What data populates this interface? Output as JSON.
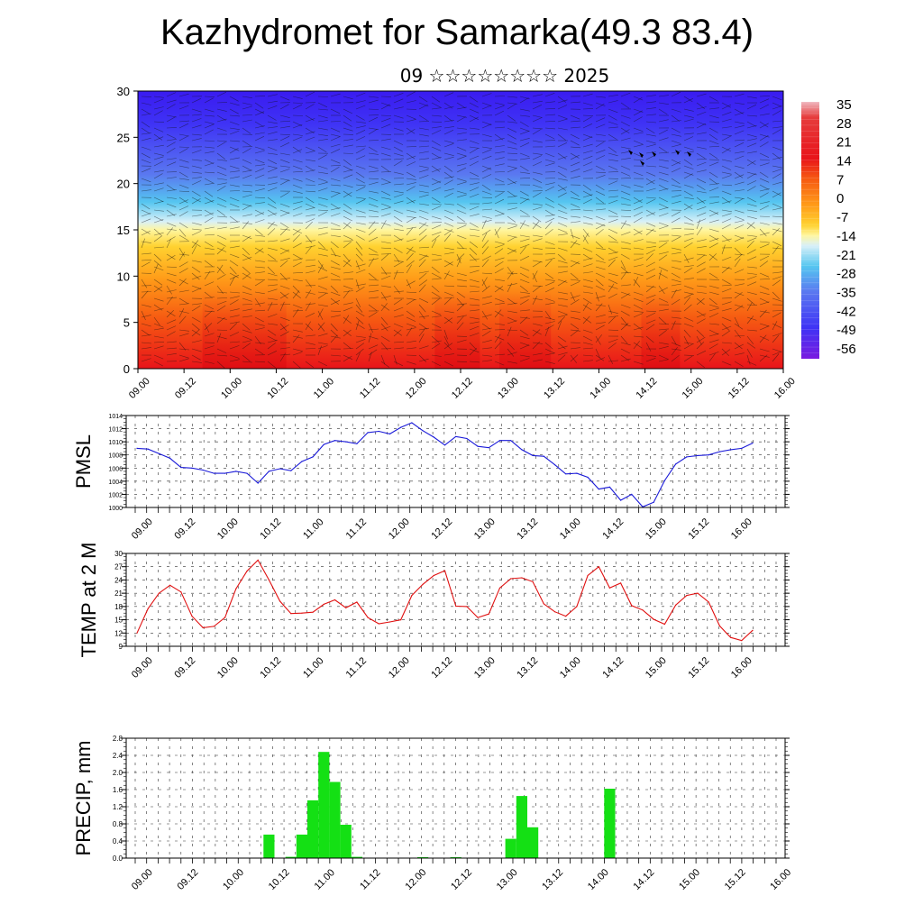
{
  "header": {
    "title": "Kazhydromet for Samarka(49.3 83.4)",
    "subtitle": "09 ☆☆☆☆☆☆☆☆ 2025"
  },
  "chart_data": [
    {
      "type": "heatmap",
      "ylim": [
        0,
        30
      ],
      "y_ticks": [
        "0",
        "5",
        "10",
        "15",
        "20",
        "25",
        "30"
      ],
      "x_ticks": [
        "09.00",
        "09.12",
        "10.00",
        "10.12",
        "11.00",
        "11.12",
        "12.00",
        "12.12",
        "13.00",
        "13.12",
        "14.00",
        "14.12",
        "15.00",
        "15.12",
        "16.00"
      ],
      "colorbar_ticks": [
        "35",
        "28",
        "21",
        "14",
        "7",
        "0",
        "-7",
        "-14",
        "-21",
        "-28",
        "-35",
        "-42",
        "-49",
        "-56"
      ],
      "colors": {
        "low": "#3a1bf0",
        "mid": "#fff6a0",
        "high": "#e8141a"
      },
      "grid": false
    },
    {
      "type": "line",
      "ylabel": "PMSL",
      "ylim": [
        1000,
        1014
      ],
      "y_ticks": [
        "1000",
        "1002",
        "1004",
        "1006",
        "1008",
        "1010",
        "1012",
        "1014"
      ],
      "x_ticks": [
        "09.00",
        "09.12",
        "10.00",
        "10.12",
        "11.00",
        "11.12",
        "12.00",
        "12.12",
        "13.00",
        "13.12",
        "14.00",
        "14.12",
        "15.00",
        "15.12",
        "16.00"
      ],
      "series_color": "#1a1ad8",
      "values": [
        1009,
        1008.9,
        1008.2,
        1007.5,
        1006.1,
        1006,
        1005.7,
        1005.2,
        1005.2,
        1005.5,
        1005.2,
        1003.7,
        1005.5,
        1005.9,
        1005.6,
        1007,
        1007.7,
        1009.6,
        1010.2,
        1010,
        1009.7,
        1011.4,
        1011.6,
        1011.2,
        1012.2,
        1012.9,
        1011.7,
        1010.7,
        1009.5,
        1010.8,
        1010.5,
        1009.3,
        1009.1,
        1010.2,
        1010.2,
        1008.8,
        1007.9,
        1007.8,
        1006.5,
        1005.1,
        1005.2,
        1004.6,
        1002.8,
        1003.1,
        1001.1,
        1002,
        1000.1,
        1000.8,
        1004.1,
        1006.6,
        1007.7,
        1007.9,
        1008,
        1008.5,
        1008.8,
        1009,
        1009.8
      ],
      "grid": true
    },
    {
      "type": "line",
      "ylabel": "TEMP at 2 M",
      "ylim": [
        9,
        30
      ],
      "y_ticks": [
        "9",
        "12",
        "15",
        "18",
        "21",
        "24",
        "27",
        "30"
      ],
      "x_ticks": [
        "09.00",
        "09.12",
        "10.00",
        "10.12",
        "11.00",
        "11.12",
        "12.00",
        "12.12",
        "13.00",
        "13.12",
        "14.00",
        "14.12",
        "15.00",
        "15.12",
        "16.00"
      ],
      "series_color": "#e01010",
      "values": [
        12,
        17.5,
        21,
        22.8,
        21.3,
        15.8,
        13.2,
        13.5,
        15.5,
        22,
        26,
        28.5,
        24,
        19.2,
        16.4,
        16.5,
        16.7,
        18.5,
        19.5,
        17.7,
        19,
        15.5,
        14.1,
        14.5,
        15,
        20.5,
        23,
        25,
        26.1,
        18.1,
        18,
        15.5,
        16.3,
        22.2,
        24.3,
        24.5,
        23.6,
        18.6,
        16.8,
        15.8,
        18,
        25,
        27,
        22.2,
        23.3,
        18.2,
        17.2,
        15.1,
        14,
        18.3,
        20.5,
        21,
        19,
        13.6,
        11,
        10.3,
        12.6
      ],
      "grid": true
    },
    {
      "type": "bar",
      "ylabel": "PRECIP, mm",
      "ylim": [
        0,
        2.8
      ],
      "y_ticks": [
        "0.0",
        "0.4",
        "0.8",
        "1.2",
        "1.6",
        "2.0",
        "2.4",
        "2.8"
      ],
      "x_ticks": [
        "09.00",
        "09.12",
        "10.00",
        "10.12",
        "11.00",
        "11.12",
        "12.00",
        "12.12",
        "13.00",
        "13.12",
        "14.00",
        "14.12",
        "15.00",
        "15.12",
        "16.00"
      ],
      "series_color": "#14e014",
      "values": [
        0,
        0,
        0,
        0,
        0,
        0,
        0,
        0,
        0,
        0,
        0,
        0,
        0.55,
        0,
        0.03,
        0.55,
        1.35,
        2.48,
        1.78,
        0.78,
        0.03,
        0,
        0,
        0,
        0,
        0,
        0.02,
        0,
        0,
        0.02,
        0,
        0,
        0,
        0,
        0.45,
        1.45,
        0.72,
        0,
        0,
        0,
        0,
        0,
        0,
        1.62,
        0,
        0,
        0,
        0,
        0,
        0,
        0,
        0,
        0,
        0,
        0,
        0,
        0
      ],
      "grid": true
    }
  ]
}
